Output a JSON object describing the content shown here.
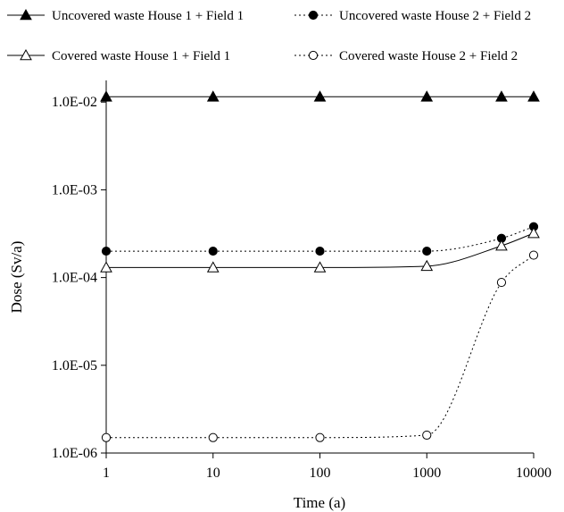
{
  "chart_data": {
    "type": "line",
    "xlabel": "Time (a)",
    "ylabel": "Dose (Sv/a)",
    "x_scale": "log",
    "y_scale": "log",
    "xlim": [
      1,
      10000
    ],
    "ylim": [
      1e-06,
      0.01
    ],
    "x_ticks": [
      "1",
      "10",
      "100",
      "1000",
      "10000"
    ],
    "y_ticks": [
      "1.0E-02",
      "1.0E-03",
      "1.0E-04",
      "1.0E-05",
      "1.0E-06"
    ],
    "grid": false,
    "legend_position": "top",
    "series": [
      {
        "name": "Uncovered waste House 1 + Field 1",
        "marker": "filled-triangle",
        "line": "solid",
        "x": [
          1,
          10,
          100,
          1000,
          5000,
          10000
        ],
        "y": [
          0.0115,
          0.0115,
          0.0115,
          0.0115,
          0.0115,
          0.0115
        ]
      },
      {
        "name": "Uncovered waste House 2 + Field 2",
        "marker": "filled-circle",
        "line": "dotted",
        "x": [
          1,
          10,
          100,
          1000,
          5000,
          10000
        ],
        "y": [
          0.0002,
          0.0002,
          0.0002,
          0.0002,
          0.00028,
          0.00038
        ]
      },
      {
        "name": "Covered waste House 1 + Field 1",
        "marker": "open-triangle",
        "line": "solid",
        "x": [
          1,
          10,
          100,
          1000,
          5000,
          10000
        ],
        "y": [
          0.00013,
          0.00013,
          0.00013,
          0.000135,
          0.00023,
          0.00032
        ]
      },
      {
        "name": "Covered waste House 2 + Field 2",
        "marker": "open-circle",
        "line": "dotted",
        "x": [
          1,
          10,
          100,
          1000,
          5000,
          10000
        ],
        "y": [
          1.5e-06,
          1.5e-06,
          1.5e-06,
          1.6e-06,
          8.8e-05,
          0.00018
        ]
      }
    ]
  }
}
